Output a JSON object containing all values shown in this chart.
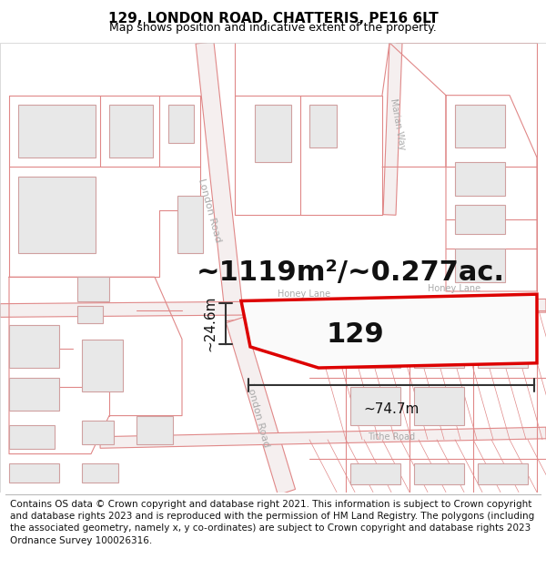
{
  "title": "129, LONDON ROAD, CHATTERIS, PE16 6LT",
  "subtitle": "Map shows position and indicative extent of the property.",
  "area_text": "~1119m²/~0.277ac.",
  "label_129": "129",
  "dim_width": "~74.7m",
  "dim_height": "~24.6m",
  "footer": "Contains OS data © Crown copyright and database right 2021. This information is subject to Crown copyright and database rights 2023 and is reproduced with the permission of HM Land Registry. The polygons (including the associated geometry, namely x, y co-ordinates) are subject to Crown copyright and database rights 2023 Ordnance Survey 100026316.",
  "bg_color": "#ffffff",
  "road_fill": "#f5efef",
  "road_edge": "#e08888",
  "building_fill": "#e8e8e8",
  "building_edge": "#d0a0a0",
  "highlight_fill": "#ffffff",
  "highlight_edge": "#dd0000",
  "dim_color": "#333333",
  "label_color": "#111111",
  "road_text_color": "#aaaaaa",
  "title_fontsize": 11,
  "subtitle_fontsize": 9,
  "area_fontsize": 22,
  "label_fontsize": 22,
  "dim_fontsize": 11,
  "road_fontsize": 8,
  "footer_fontsize": 7.5
}
